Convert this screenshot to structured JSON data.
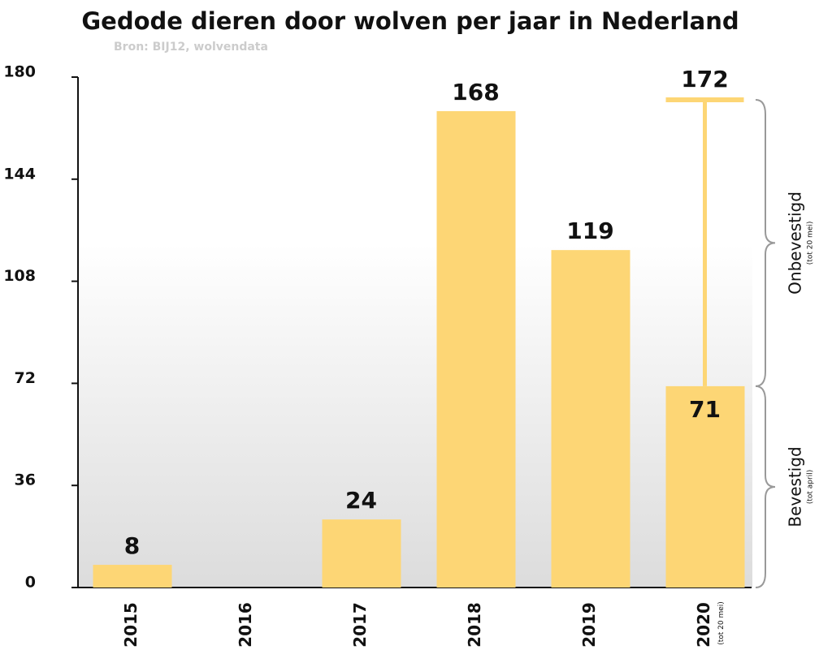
{
  "chart_data": {
    "type": "bar",
    "title": "Gedode dieren door wolven per jaar in Nederland",
    "subtitle": "Bron: BIJ12, wolvendata",
    "categories": [
      "2015",
      "2016",
      "2017",
      "2018",
      "2019",
      "2020"
    ],
    "values": [
      8,
      null,
      24,
      168,
      119,
      71
    ],
    "upper_values": [
      null,
      null,
      null,
      null,
      null,
      172
    ],
    "color": "#fdd675",
    "ylim": [
      0,
      180
    ],
    "yticks": [
      0,
      36,
      72,
      108,
      144,
      180
    ],
    "annotations": {
      "unconfirmed": "Onbevestigd",
      "unconfirmed_note": "(tot 20 mei)",
      "confirmed": "Bevestigd",
      "confirmed_note": "(tot april)",
      "x_note": "(tot 20 mei)"
    }
  }
}
